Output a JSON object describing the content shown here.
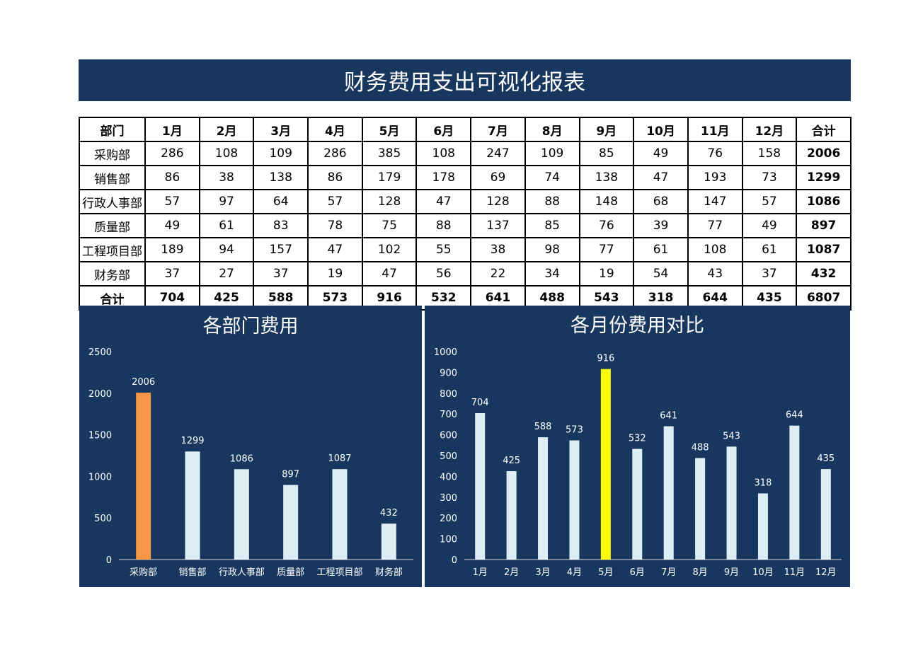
{
  "title": "财务费用支出可视化报表",
  "table": {
    "headers": [
      "部门",
      "1月",
      "2月",
      "3月",
      "4月",
      "5月",
      "6月",
      "7月",
      "8月",
      "9月",
      "10月",
      "11月",
      "12月",
      "合计"
    ],
    "rows": [
      [
        "采购部",
        "286",
        "108",
        "109",
        "286",
        "385",
        "108",
        "247",
        "109",
        "85",
        "49",
        "76",
        "158",
        "2006"
      ],
      [
        "销售部",
        "86",
        "38",
        "138",
        "86",
        "179",
        "178",
        "69",
        "74",
        "138",
        "47",
        "193",
        "73",
        "1299"
      ],
      [
        "行政人事部",
        "57",
        "97",
        "64",
        "57",
        "128",
        "47",
        "128",
        "88",
        "148",
        "68",
        "147",
        "57",
        "1086"
      ],
      [
        "质量部",
        "49",
        "61",
        "83",
        "78",
        "75",
        "88",
        "137",
        "85",
        "76",
        "39",
        "77",
        "49",
        "897"
      ],
      [
        "工程项目部",
        "189",
        "94",
        "157",
        "47",
        "102",
        "55",
        "38",
        "98",
        "77",
        "61",
        "108",
        "61",
        "1087"
      ],
      [
        "财务部",
        "37",
        "27",
        "37",
        "19",
        "47",
        "56",
        "22",
        "34",
        "19",
        "54",
        "43",
        "37",
        "432"
      ],
      [
        "合计",
        "704",
        "425",
        "588",
        "573",
        "916",
        "532",
        "641",
        "488",
        "543",
        "318",
        "644",
        "435",
        "6807"
      ]
    ]
  },
  "chart_data": [
    {
      "type": "bar",
      "title": "各部门费用",
      "categories": [
        "采购部",
        "销售部",
        "行政人事部",
        "质量部",
        "工程项目部",
        "财务部"
      ],
      "values": [
        2006,
        1299,
        1086,
        897,
        1087,
        432
      ],
      "ylim": [
        0,
        2500
      ],
      "yticks": [
        0,
        500,
        1000,
        1500,
        2000,
        2500
      ],
      "highlight_index": 0,
      "bar_color": "#deeef5",
      "highlight_color": "#f79646",
      "xlabel": "",
      "ylabel": ""
    },
    {
      "type": "bar",
      "title": "各月份费用对比",
      "categories": [
        "1月",
        "2月",
        "3月",
        "4月",
        "5月",
        "6月",
        "7月",
        "8月",
        "9月",
        "10月",
        "11月",
        "12月"
      ],
      "values": [
        704,
        425,
        588,
        573,
        916,
        532,
        641,
        488,
        543,
        318,
        644,
        435
      ],
      "ylim": [
        0,
        1000
      ],
      "yticks": [
        0,
        100,
        200,
        300,
        400,
        500,
        600,
        700,
        800,
        900,
        1000
      ],
      "highlight_index": 4,
      "bar_color": "#deeef5",
      "highlight_color": "#ffff00",
      "xlabel": "",
      "ylabel": ""
    }
  ],
  "colors": {
    "panel_bg": "#18375f",
    "axis": "#d9d9d9"
  }
}
